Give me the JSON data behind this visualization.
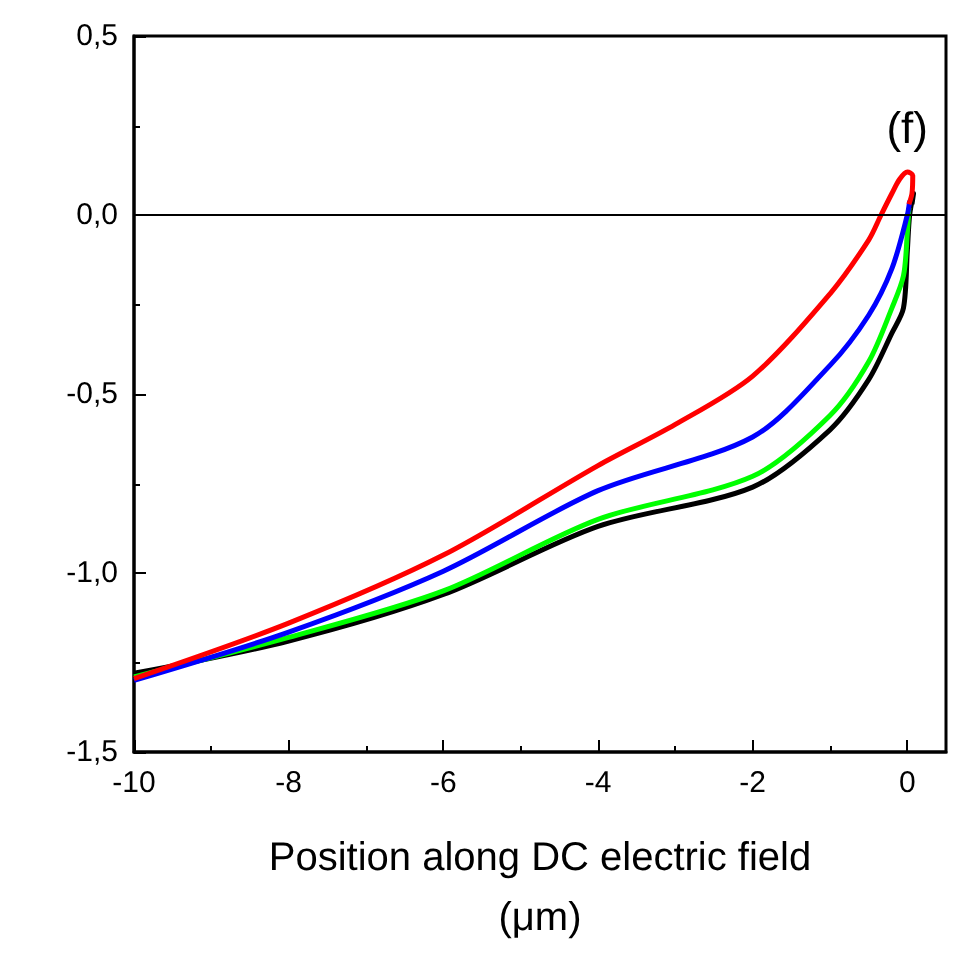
{
  "chart_data": {
    "type": "line",
    "xlabel": "Position along DC electric field\n(μm)",
    "annotations": [
      "(f)"
    ],
    "xlim": [
      -10,
      0.5
    ],
    "ylim": [
      -1.5,
      0.5
    ],
    "xticks": [
      -10,
      -8,
      -6,
      -4,
      -2,
      0
    ],
    "yticks": [
      {
        "value": -1.5,
        "label": "-1,5"
      },
      {
        "value": -1,
        "label": "-1,0"
      },
      {
        "value": -0.5,
        "label": "-0,5"
      },
      {
        "value": 0,
        "label": "0,0"
      },
      {
        "value": 0.5,
        "label": "0,5"
      }
    ],
    "grid": false,
    "marker": "none",
    "line_style": "solid",
    "ref_lines": [
      {
        "axis": "y",
        "value": 0,
        "color": "#000000"
      }
    ],
    "series": [
      {
        "color": "#000000",
        "x": [
          -10,
          -8,
          -6,
          -4,
          -2,
          -1,
          -0.5,
          -0.2,
          -0.05,
          0,
          0.03,
          0.08,
          0.06
        ],
        "values": [
          -1.28,
          -1.19,
          -1.06,
          -0.87,
          -0.76,
          -0.6,
          -0.46,
          -0.33,
          -0.26,
          -0.1,
          0,
          0.06,
          0.03
        ]
      },
      {
        "color": "#00ff00",
        "x": [
          -10,
          -8,
          -6,
          -4,
          -2,
          -1,
          -0.5,
          -0.2,
          -0.05,
          0,
          0.02
        ],
        "values": [
          -1.29,
          -1.18,
          -1.05,
          -0.85,
          -0.73,
          -0.56,
          -0.41,
          -0.26,
          -0.17,
          -0.05,
          0.02
        ]
      },
      {
        "color": "#0000ff",
        "x": [
          -10,
          -8,
          -6,
          -4,
          -2,
          -1,
          -0.5,
          -0.2,
          0,
          0.03
        ],
        "values": [
          -1.3,
          -1.165,
          -0.995,
          -0.77,
          -0.62,
          -0.42,
          -0.28,
          -0.15,
          0,
          0.04
        ]
      },
      {
        "color": "#ff0000",
        "x": [
          -10,
          -8,
          -6,
          -4,
          -3,
          -2,
          -1,
          -0.5,
          -0.34,
          -0.2,
          -0.1,
          0,
          0.07,
          0.06,
          0.02
        ],
        "values": [
          -1.295,
          -1.14,
          -0.95,
          -0.7,
          -0.585,
          -0.45,
          -0.22,
          -0.07,
          0,
          0.06,
          0.1,
          0.12,
          0.11,
          0.06,
          0.03
        ]
      }
    ]
  }
}
